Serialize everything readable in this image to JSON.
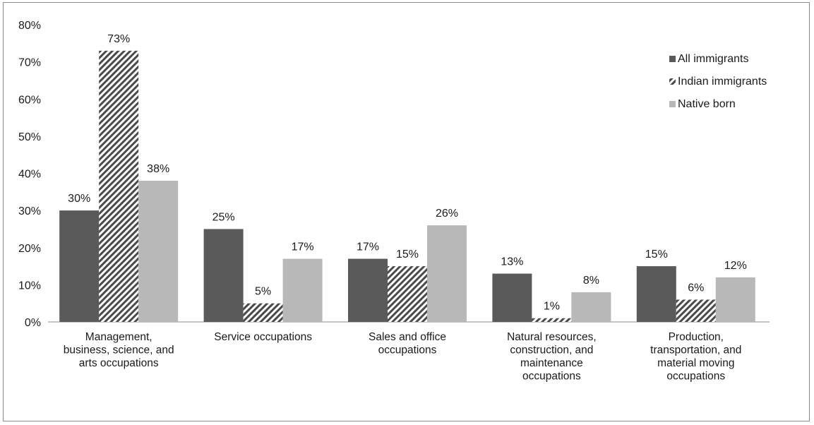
{
  "chart_data": {
    "type": "bar",
    "categories": [
      [
        "Management,",
        "business, science, and",
        "arts occupations"
      ],
      [
        "Service occupations"
      ],
      [
        "Sales and office",
        "occupations"
      ],
      [
        "Natural resources,",
        "construction, and",
        "maintenance",
        "occupations"
      ],
      [
        "Production,",
        "transportation, and",
        "material moving",
        "occupations"
      ]
    ],
    "series": [
      {
        "name": "All immigrants",
        "values": [
          30,
          25,
          17,
          13,
          15
        ],
        "color": "#5a5a5a",
        "pattern": "solid"
      },
      {
        "name": "Indian immigrants",
        "values": [
          73,
          5,
          15,
          1,
          6
        ],
        "color": "#4a4a4a",
        "pattern": "diagonal-hatch"
      },
      {
        "name": "Native born",
        "values": [
          38,
          17,
          26,
          8,
          12
        ],
        "color": "#b8b8b8",
        "pattern": "solid"
      }
    ],
    "data_labels": [
      [
        "30%",
        "73%",
        "38%"
      ],
      [
        "25%",
        "5%",
        "17%"
      ],
      [
        "17%",
        "15%",
        "26%"
      ],
      [
        "13%",
        "1%",
        "8%"
      ],
      [
        "15%",
        "6%",
        "12%"
      ]
    ],
    "y_ticks": [
      "0%",
      "10%",
      "20%",
      "30%",
      "40%",
      "50%",
      "60%",
      "70%",
      "80%"
    ],
    "ylim": [
      0,
      80
    ],
    "grid": false,
    "legend_position": "top-right",
    "title": "",
    "xlabel": "",
    "ylabel": ""
  }
}
